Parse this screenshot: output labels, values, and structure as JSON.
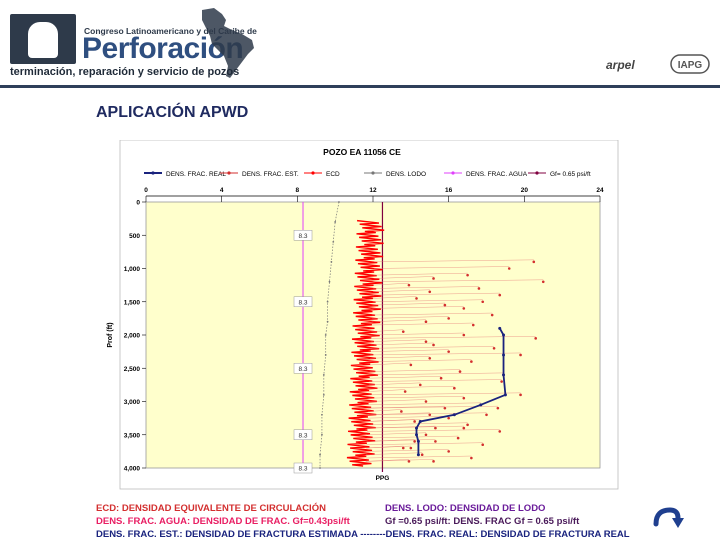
{
  "header": {
    "congress_line": "Congreso Latinoamericano y del Caribe de",
    "title": "Perforación",
    "subtitle": "terminación, reparación y servicio de pozos",
    "arpel_logo": "arpel",
    "iapg_logo": "IAPG"
  },
  "slide": {
    "title": "APLICACIÓN APWD"
  },
  "chart_data": {
    "type": "scatter",
    "title": "POZO EA 11056 CE",
    "xlabel": "PPG",
    "ylabel": "Prof (ft)",
    "xlim": [
      0,
      24
    ],
    "ylim": [
      0,
      4000
    ],
    "y_inverted": true,
    "x_ticks": [
      "0",
      "4",
      "8",
      "12",
      "16",
      "20",
      "24"
    ],
    "y_ticks": [
      "0",
      "500",
      "1,000",
      "1,500",
      "2,000",
      "2,500",
      "3,000",
      "3,500",
      "4,000"
    ],
    "legend": [
      {
        "name": "DENS. FRAC. REAL",
        "color": "#1a237e"
      },
      {
        "name": "DENS. FRAC. EST.",
        "color": "#d32f2f"
      },
      {
        "name": "ECD",
        "color": "#ff0000"
      },
      {
        "name": "DENS. LODO",
        "color": "#777777"
      },
      {
        "name": "DENS. FRAC. AGUA",
        "color": "#e040fb"
      },
      {
        "name": "Gf= 0.65 psi/ft",
        "color": "#800040"
      }
    ],
    "plot_background": "#ffffcc",
    "data_labels": [
      {
        "text": "8.3",
        "x": 8.3,
        "y": 500
      },
      {
        "text": "8.3",
        "x": 8.3,
        "y": 1500
      },
      {
        "text": "8.3",
        "x": 8.3,
        "y": 2500
      },
      {
        "text": "8.3",
        "x": 8.3,
        "y": 3500
      },
      {
        "text": "8.3",
        "x": 8.3,
        "y": 4000
      }
    ],
    "series": [
      {
        "name": "DENS. FRAC. AGUA",
        "x": [
          8.3,
          8.3
        ],
        "y": [
          0,
          4000
        ]
      },
      {
        "name": "Gf= 0.65 psi/ft",
        "x": [
          12.5,
          12.5
        ],
        "y": [
          0,
          4000
        ]
      },
      {
        "name": "DENS. LODO",
        "x": [
          10.2,
          10.0,
          9.9,
          9.8,
          9.7,
          9.6,
          9.6,
          9.5,
          9.5,
          9.4,
          9.4,
          9.3,
          9.3,
          9.2,
          9.2
        ],
        "y": [
          0,
          300,
          600,
          900,
          1200,
          1500,
          1800,
          2000,
          2300,
          2600,
          2900,
          3200,
          3500,
          3800,
          4000
        ]
      },
      {
        "name": "DENS. FRAC. REAL",
        "x": [
          18.7,
          18.9,
          18.9,
          18.9,
          19.0,
          17.7,
          16.3,
          14.5,
          14.3,
          14.3,
          14.4,
          14.4
        ],
        "y": [
          1900,
          2000,
          2300,
          2600,
          2900,
          3050,
          3200,
          3300,
          3400,
          3500,
          3600,
          3800
        ]
      },
      {
        "name": "DENS. FRAC. EST.",
        "x": [
          20.5,
          19.2,
          17.0,
          15.2,
          21.0,
          13.9,
          17.6,
          15.0,
          18.7,
          14.3,
          17.8,
          15.8,
          16.8,
          18.3,
          16.0,
          14.8,
          17.3,
          13.6,
          16.8,
          20.6,
          14.8,
          15.2,
          18.4,
          16.0,
          19.8,
          15.0,
          17.2,
          14.0,
          16.6,
          18.9,
          15.6,
          18.8,
          14.5,
          16.3,
          13.7,
          19.8,
          16.8,
          14.8,
          17.7,
          15.8,
          13.5,
          18.0,
          16.0,
          14.2,
          17.0,
          15.3,
          18.7,
          14.8,
          16.5,
          15.3,
          17.8,
          14.0,
          16.0,
          14.6,
          17.2,
          13.9,
          18.6,
          15.0,
          14.5,
          16.8,
          14.2,
          13.6,
          15.2
        ],
        "y": [
          900,
          1000,
          1100,
          1150,
          1200,
          1250,
          1300,
          1350,
          1400,
          1450,
          1500,
          1550,
          1600,
          1700,
          1750,
          1800,
          1850,
          1950,
          2000,
          2050,
          2100,
          2150,
          2200,
          2250,
          2300,
          2350,
          2400,
          2450,
          2550,
          2600,
          2650,
          2700,
          2750,
          2800,
          2850,
          2900,
          2950,
          3000,
          3050,
          3100,
          3150,
          3200,
          3250,
          3300,
          3350,
          3400,
          3450,
          3500,
          3550,
          3600,
          3650,
          3700,
          3750,
          3800,
          3850,
          3900,
          3100,
          3200,
          3300,
          3400,
          3600,
          3700,
          3900
        ]
      }
    ],
    "bottom_legend": [
      {
        "text": "ECD: DENSIDAD EQUIVALENTE DE CIRCULACIÓN",
        "color": "#d32f2f"
      },
      {
        "text": "DENS. LODO: DENSIDAD DE LODO",
        "color": "#6a1b9a"
      },
      {
        "text": "DENS. FRAC. AGUA: DENSIDAD DE FRAC. Gf=0.43psi/ft",
        "color": "#e91e63"
      },
      {
        "text": "Gf =0.65 psi/ft: DENS. FRAC Gf = 0.65 psi/ft",
        "color": "#4a1a5a"
      },
      {
        "text": "DENS. FRAC. EST.: DENSIDAD DE FRACTURA ESTIMADA --------DENS. FRAC. REAL: DENSIDAD DE FRACTURA REAL",
        "color": "#1a237e"
      }
    ]
  }
}
